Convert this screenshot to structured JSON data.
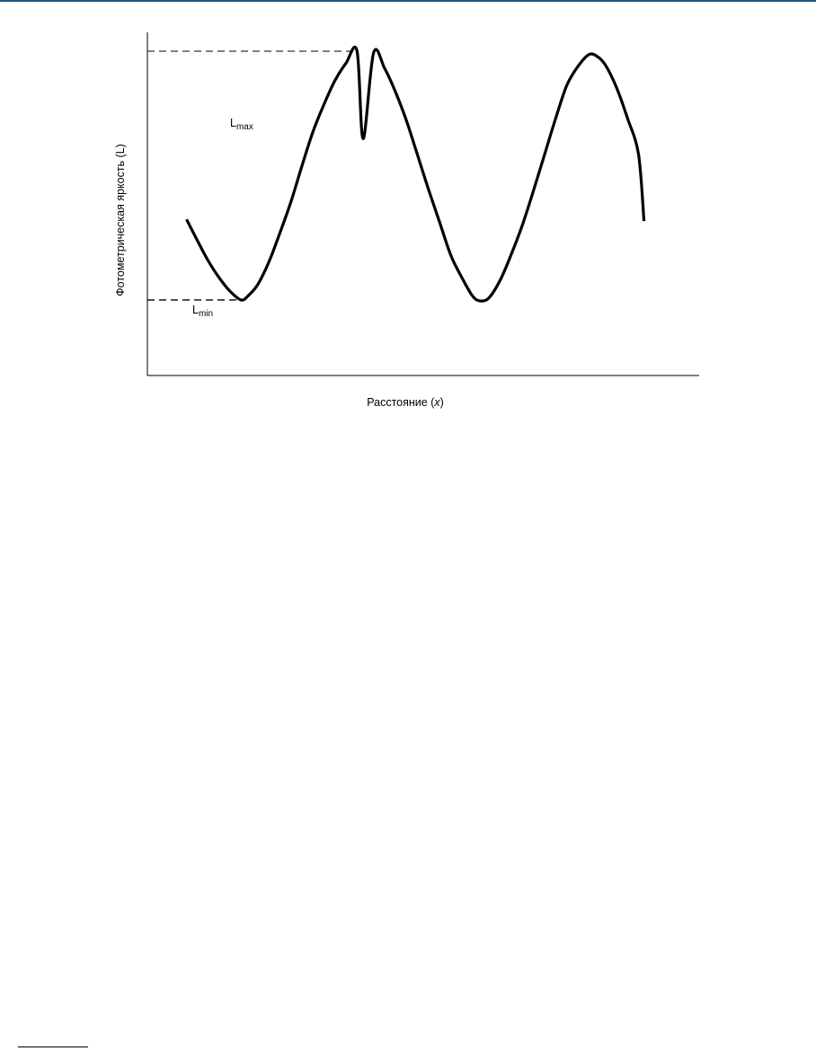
{
  "page": {
    "accent_color": "#1c5a7e"
  },
  "chart_data": {
    "type": "line",
    "title": "",
    "xlabel": "Расстояние",
    "xlabel_var": "x",
    "ylabel": "Фотометрическая яркость (L)",
    "grid": false,
    "legend": "none",
    "xlim": [
      0,
      10
    ],
    "ylim": [
      0,
      10
    ],
    "series": [
      {
        "name": "",
        "color": "#000000",
        "x": [
          0.71,
          0.9,
          1.1,
          1.3,
          1.5,
          1.7,
          1.83,
          2.0,
          2.2,
          2.4,
          2.6,
          2.8,
          3.0,
          3.2,
          3.4,
          3.6,
          3.8,
          3.91,
          4.1,
          4.3,
          4.5,
          4.7,
          4.9,
          5.1,
          5.3,
          5.5,
          5.7,
          5.9,
          6.05,
          6.2,
          6.4,
          6.6,
          6.8,
          7.0,
          7.2,
          7.4,
          7.6,
          7.8,
          8.0,
          8.15,
          8.3,
          8.5,
          8.7,
          8.9,
          9.0
        ],
        "y": [
          4.55,
          3.95,
          3.35,
          2.85,
          2.45,
          2.2,
          2.33,
          2.65,
          3.3,
          4.15,
          5.05,
          6.1,
          7.1,
          7.9,
          8.6,
          9.1,
          9.45,
          6.9,
          9.4,
          8.95,
          8.25,
          7.4,
          6.4,
          5.4,
          4.45,
          3.5,
          2.85,
          2.3,
          2.17,
          2.28,
          2.8,
          3.55,
          4.4,
          5.4,
          6.45,
          7.5,
          8.45,
          9.0,
          9.35,
          9.3,
          9.05,
          8.4,
          7.5,
          6.45,
          4.5
        ]
      }
    ],
    "annotations": [
      {
        "label": "L",
        "sub": "max",
        "y": 9.45,
        "line": "dashed"
      },
      {
        "label": "L",
        "sub": "min",
        "y": 2.2,
        "line": "dashed"
      }
    ]
  }
}
